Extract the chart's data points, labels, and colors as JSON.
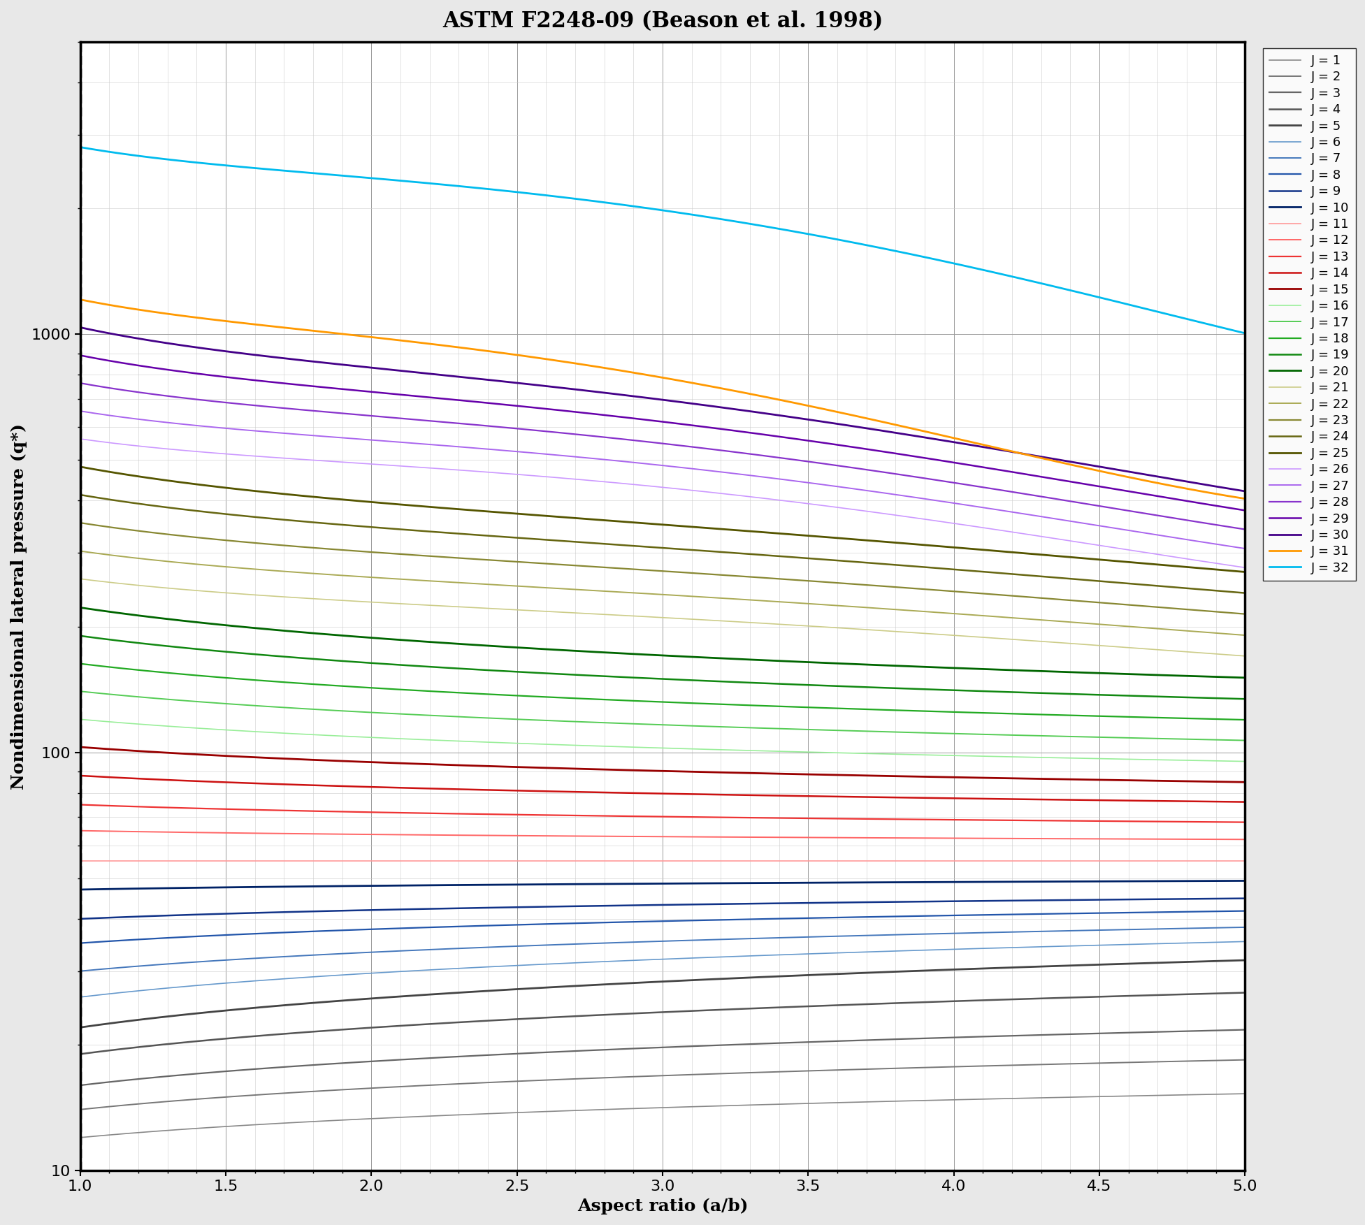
{
  "title": "ASTM F2248-09 (Beason et al. 1998)",
  "xlabel": "Aspect ratio (a/b)",
  "ylabel": "Nondimensional lateral pressure (q*)",
  "xlim": [
    1.0,
    5.0
  ],
  "ylim": [
    10,
    5000
  ],
  "title_fontsize": 22,
  "label_fontsize": 18,
  "tick_fontsize": 16,
  "legend_fontsize": 13,
  "J_colors": {
    "1": "#888888",
    "2": "#777777",
    "3": "#666666",
    "4": "#555555",
    "5": "#444444",
    "6": "#6699cc",
    "7": "#4477bb",
    "8": "#2255aa",
    "9": "#113388",
    "10": "#002266",
    "11": "#ff9999",
    "12": "#ff6666",
    "13": "#ee3333",
    "14": "#cc1111",
    "15": "#990000",
    "16": "#99ee99",
    "17": "#55cc55",
    "18": "#22aa22",
    "19": "#118811",
    "20": "#006600",
    "21": "#cccc88",
    "22": "#aaaa55",
    "23": "#888833",
    "24": "#666611",
    "25": "#555500",
    "26": "#cc99ff",
    "27": "#aa66ee",
    "28": "#8833cc",
    "29": "#6600aa",
    "30": "#440088",
    "31": "#ff9900",
    "32": "#00bbee"
  },
  "base_values_ar1": {
    "1": 12,
    "2": 14,
    "3": 16,
    "4": 19,
    "5": 22,
    "6": 26,
    "7": 30,
    "8": 35,
    "9": 40,
    "10": 47,
    "11": 55,
    "12": 65,
    "13": 75,
    "14": 88,
    "15": 103,
    "16": 120,
    "17": 140,
    "18": 163,
    "19": 190,
    "20": 222,
    "21": 260,
    "22": 303,
    "23": 354,
    "24": 413,
    "25": 482,
    "26": 562,
    "27": 655,
    "28": 764,
    "29": 890,
    "30": 1038,
    "31": 1210,
    "32": 2800
  },
  "linewidths": {
    "1": 1.2,
    "2": 1.4,
    "3": 1.6,
    "4": 1.8,
    "5": 2.0,
    "6": 1.2,
    "7": 1.4,
    "8": 1.6,
    "9": 1.8,
    "10": 2.0,
    "11": 1.2,
    "12": 1.4,
    "13": 1.6,
    "14": 1.8,
    "15": 2.0,
    "16": 1.2,
    "17": 1.4,
    "18": 1.6,
    "19": 1.8,
    "20": 2.0,
    "21": 1.2,
    "22": 1.4,
    "23": 1.6,
    "24": 1.8,
    "25": 2.0,
    "26": 1.2,
    "27": 1.4,
    "28": 1.6,
    "29": 1.8,
    "30": 2.0,
    "31": 2.0,
    "32": 2.0
  },
  "background_color": "#ffffff",
  "grid_major_color": "#999999",
  "grid_minor_color": "#cccccc",
  "ar_points": 500
}
